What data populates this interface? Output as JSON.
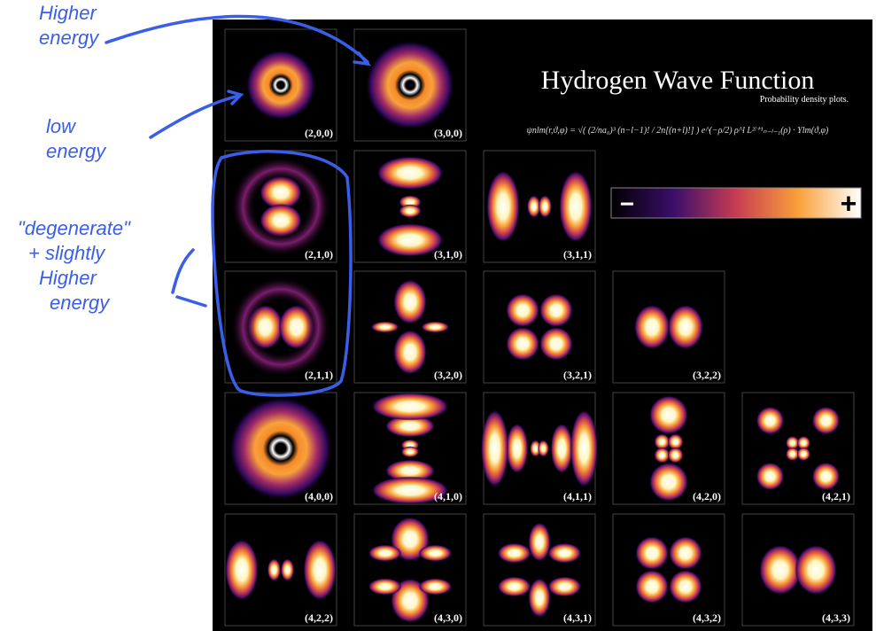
{
  "header": {
    "title": "Hydrogen Wave Function",
    "subtitle": "Probability density plots.",
    "formula": "ψnlm(r,ϑ,φ) = √( (2/na₀)³ (n−l−1)! / 2n[(n+l)!] ) e^(−ρ/2) ρ^l L²ˡ⁺¹ₙ₋ₗ₋₁(ρ) · Ylm(ϑ,φ)"
  },
  "colorbar": {
    "minus": "−",
    "plus": "+"
  },
  "rows": [
    [
      "(2,0,0)",
      "(3,0,0)"
    ],
    [
      "(2,1,0)",
      "(3,1,0)",
      "(3,1,1)"
    ],
    [
      "(2,1,1)",
      "(3,2,0)",
      "(3,2,1)",
      "(3,2,2)"
    ],
    [
      "(4,0,0)",
      "(4,1,0)",
      "(4,1,1)",
      "(4,2,0)",
      "(4,2,1)"
    ],
    [
      "(4,2,2)",
      "(4,3,0)",
      "(4,3,1)",
      "(4,3,2)",
      "(4,3,3)"
    ]
  ],
  "annotations": {
    "higher_energy": [
      "Higher",
      "energy"
    ],
    "low_energy": [
      "low",
      "energy"
    ],
    "degenerate": [
      "\"degenerate\"",
      "+ slightly",
      "Higher",
      "energy"
    ]
  }
}
